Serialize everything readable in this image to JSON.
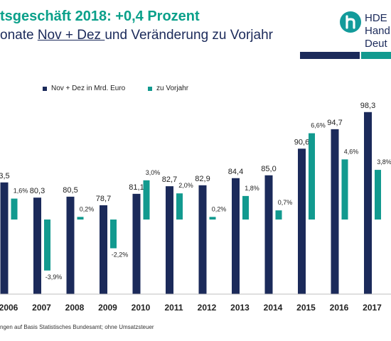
{
  "header": {
    "title": "tsgeschäft 2018: +0,4 Prozent",
    "subtitle_pre": "onate ",
    "subtitle_underlined": "Nov + Dez ",
    "subtitle_post": "und Veränderung zu Vorjahr"
  },
  "logo": {
    "line1": "HDE",
    "line2": "Hand",
    "line3": "Deut"
  },
  "footnote": "ngen auf Basis Statistisches Bundesamt; ohne Umsatzsteuer",
  "colors": {
    "navy": "#1b2a5a",
    "teal": "#129a8f",
    "title_green": "#0aa08a"
  },
  "chart_data": {
    "type": "bar",
    "categories": [
      "2006",
      "2007",
      "2008",
      "2009",
      "2010",
      "2011",
      "2012",
      "2013",
      "2014",
      "2015",
      "2016",
      "2017"
    ],
    "series": [
      {
        "name": "Nov + Dez in Mrd. Euro",
        "color": "#1b2a5a",
        "values": [
          83.5,
          80.3,
          80.5,
          78.7,
          81.1,
          82.7,
          82.9,
          84.4,
          85.0,
          90.6,
          94.7,
          98.3
        ],
        "labels": [
          "3,5",
          "80,3",
          "80,5",
          "78,7",
          "81,1",
          "82,7",
          "82,9",
          "84,4",
          "85,0",
          "90,6",
          "94,7",
          "98,3"
        ]
      },
      {
        "name": "zu Vorjahr",
        "color": "#129a8f",
        "values": [
          1.6,
          -3.9,
          0.2,
          -2.2,
          3.0,
          2.0,
          0.2,
          1.8,
          0.7,
          6.6,
          4.6,
          3.8
        ],
        "labels": [
          "1,6%",
          "-3,9%",
          "0,2%",
          "-2,2%",
          "3,0%",
          "2,0%",
          "0,2%",
          "1,8%",
          "0,7%",
          "6,6%",
          "4,6%",
          "3,8%"
        ]
      }
    ],
    "legend_position": "top-left",
    "grid": false
  }
}
